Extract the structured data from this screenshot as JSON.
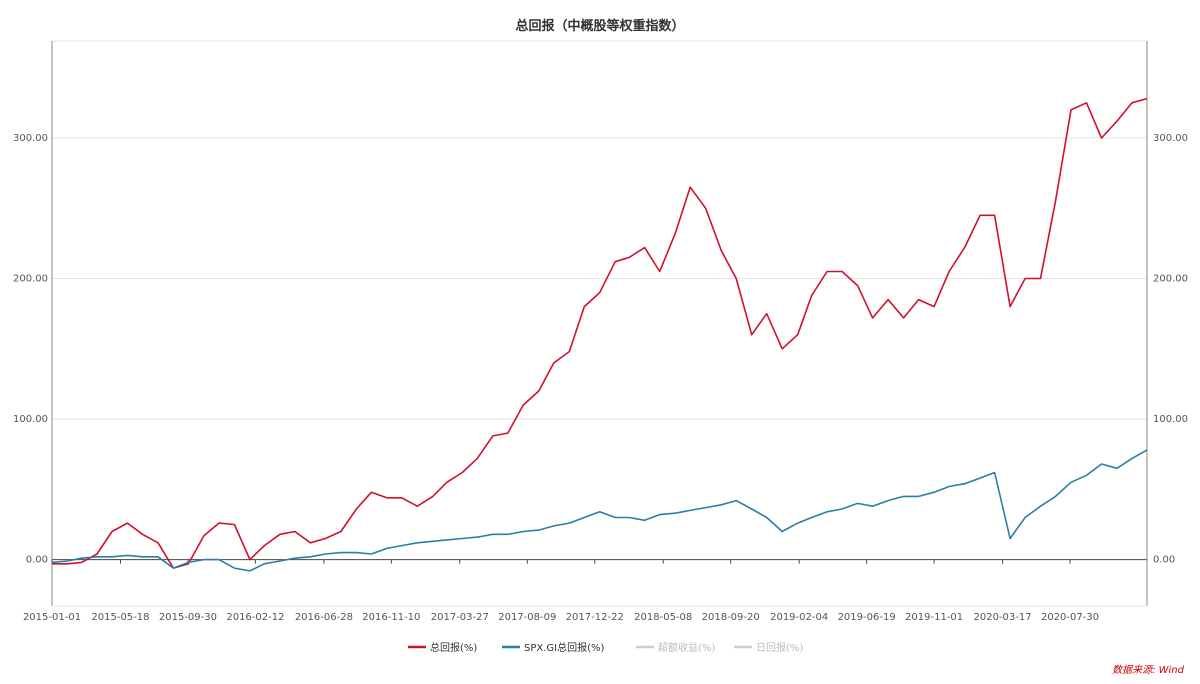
{
  "chart_data": {
    "type": "line",
    "title": "总回报（中概股等权重指数）",
    "xlabel": "",
    "ylabel": "",
    "ylim": [
      -33,
      369
    ],
    "xlim": [
      "2015-01-01",
      "2020-12-31"
    ],
    "y_ticks": [
      0,
      100,
      200,
      300
    ],
    "y_tick_labels": [
      "0.00",
      "100.00",
      "200.00",
      "300.00"
    ],
    "x_tick_labels": [
      "2015-01-01",
      "2015-05-18",
      "2015-09-30",
      "2016-02-12",
      "2016-06-28",
      "2016-11-10",
      "2017-03-27",
      "2017-08-09",
      "2017-12-22",
      "2018-05-08",
      "2018-09-20",
      "2019-02-04",
      "2019-06-19",
      "2019-11-01",
      "2020-03-17",
      "2020-07-30"
    ],
    "grid": true,
    "legend_position": "bottom",
    "x": [
      "2015-01-01",
      "2015-02-01",
      "2015-03-01",
      "2015-04-01",
      "2015-05-01",
      "2015-06-01",
      "2015-07-01",
      "2015-08-01",
      "2015-09-01",
      "2015-10-01",
      "2015-11-01",
      "2015-12-01",
      "2016-01-01",
      "2016-02-01",
      "2016-03-01",
      "2016-04-01",
      "2016-05-01",
      "2016-06-01",
      "2016-07-01",
      "2016-08-01",
      "2016-09-01",
      "2016-10-01",
      "2016-11-01",
      "2016-12-01",
      "2017-01-01",
      "2017-02-01",
      "2017-03-01",
      "2017-04-01",
      "2017-05-01",
      "2017-06-01",
      "2017-07-01",
      "2017-08-01",
      "2017-09-01",
      "2017-10-01",
      "2017-11-01",
      "2017-12-01",
      "2018-01-01",
      "2018-02-01",
      "2018-03-01",
      "2018-04-01",
      "2018-05-01",
      "2018-06-01",
      "2018-07-01",
      "2018-08-01",
      "2018-09-01",
      "2018-10-01",
      "2018-11-01",
      "2018-12-01",
      "2019-01-01",
      "2019-02-01",
      "2019-03-01",
      "2019-04-01",
      "2019-05-01",
      "2019-06-01",
      "2019-07-01",
      "2019-08-01",
      "2019-09-01",
      "2019-10-01",
      "2019-11-01",
      "2019-12-01",
      "2020-01-01",
      "2020-02-01",
      "2020-03-01",
      "2020-04-01",
      "2020-05-01",
      "2020-06-01",
      "2020-07-01",
      "2020-08-01",
      "2020-09-01",
      "2020-10-01",
      "2020-11-01",
      "2020-12-01",
      "2020-12-31"
    ],
    "series": [
      {
        "name": "总回报(%)",
        "color": "#d0112b",
        "visible": true,
        "values": [
          -3,
          -3,
          -2,
          4,
          20,
          26,
          18,
          12,
          -6,
          -3,
          17,
          26,
          25,
          0,
          10,
          18,
          20,
          12,
          15,
          20,
          36,
          48,
          44,
          44,
          38,
          45,
          55,
          62,
          72,
          88,
          90,
          110,
          120,
          140,
          148,
          180,
          190,
          212,
          215,
          222,
          205,
          232,
          265,
          250,
          220,
          200,
          160,
          175,
          150,
          160,
          188,
          205,
          205,
          195,
          172,
          185,
          172,
          185,
          180,
          205,
          222,
          245,
          245,
          180,
          200,
          200,
          255,
          320,
          325,
          300,
          312,
          325,
          328
        ]
      },
      {
        "name": "SPX.GI总回报(%)",
        "color": "#2a7fa6",
        "visible": true,
        "values": [
          -2,
          -1,
          1,
          2,
          2,
          3,
          2,
          2,
          -6,
          -2,
          0,
          0,
          -6,
          -8,
          -3,
          -1,
          1,
          2,
          4,
          5,
          5,
          4,
          8,
          10,
          12,
          13,
          14,
          15,
          16,
          18,
          18,
          20,
          21,
          24,
          26,
          30,
          34,
          30,
          30,
          28,
          32,
          33,
          35,
          37,
          39,
          42,
          36,
          30,
          20,
          26,
          30,
          34,
          36,
          40,
          38,
          42,
          45,
          45,
          48,
          52,
          54,
          58,
          62,
          15,
          30,
          38,
          45,
          55,
          60,
          68,
          65,
          72,
          78
        ]
      },
      {
        "name": "超额收益(%)",
        "color": "#cccccc",
        "visible": false
      },
      {
        "name": "日回报(%)",
        "color": "#cccccc",
        "visible": false
      }
    ]
  },
  "source": "数据来源: Wind"
}
